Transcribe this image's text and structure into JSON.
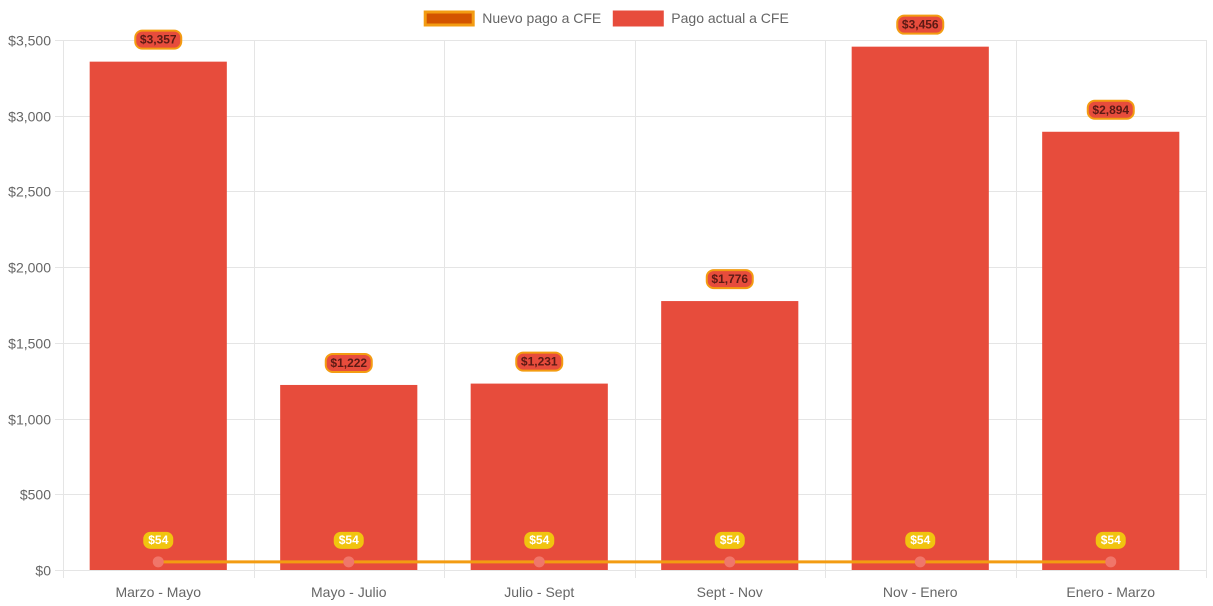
{
  "chart_data": {
    "type": "bar",
    "categories": [
      "Marzo - Mayo",
      "Mayo - Julio",
      "Julio - Sept",
      "Sept - Nov",
      "Nov - Enero",
      "Enero - Marzo"
    ],
    "series": [
      {
        "name": "Nuevo pago a CFE",
        "kind": "line",
        "values": [
          54,
          54,
          54,
          54,
          54,
          54
        ],
        "labels": [
          "$54",
          "$54",
          "$54",
          "$54",
          "$54",
          "$54"
        ],
        "color": "#F39C12",
        "point_color": "#F0766A"
      },
      {
        "name": "Pago actual a CFE",
        "kind": "bar",
        "values": [
          3357,
          1222,
          1231,
          1776,
          3456,
          2894
        ],
        "labels": [
          "$3,357",
          "$1,222",
          "$1,231",
          "$1,776",
          "$3,456",
          "$2,894"
        ],
        "color": "#E74C3C"
      }
    ],
    "y_ticks": [
      0,
      500,
      1000,
      1500,
      2000,
      2500,
      3000,
      3500
    ],
    "y_tick_labels": [
      "$0",
      "$500",
      "$1,000",
      "$1,500",
      "$2,000",
      "$2,500",
      "$3,000",
      "$3,500"
    ],
    "ylim": [
      0,
      3500
    ],
    "grid": true,
    "legend_position": "top-center",
    "title": "",
    "xlabel": "",
    "ylabel": ""
  },
  "legend": {
    "items": [
      {
        "label": "Nuevo pago a CFE",
        "swatch_fill": "#D35400",
        "swatch_border": "#F39C12"
      },
      {
        "label": "Pago actual a CFE",
        "swatch_fill": "#E74C3C",
        "swatch_border": "#E74C3C"
      }
    ]
  },
  "colors": {
    "grid": "#E5E5E5",
    "axis_text": "#666666",
    "bar_label_bg": "#E74C3C",
    "bar_label_border": "#F39C12",
    "bar_label_text": "#5B1A14",
    "line_label_bg": "#F1C40F",
    "line_label_text": "#FFFFFF"
  }
}
